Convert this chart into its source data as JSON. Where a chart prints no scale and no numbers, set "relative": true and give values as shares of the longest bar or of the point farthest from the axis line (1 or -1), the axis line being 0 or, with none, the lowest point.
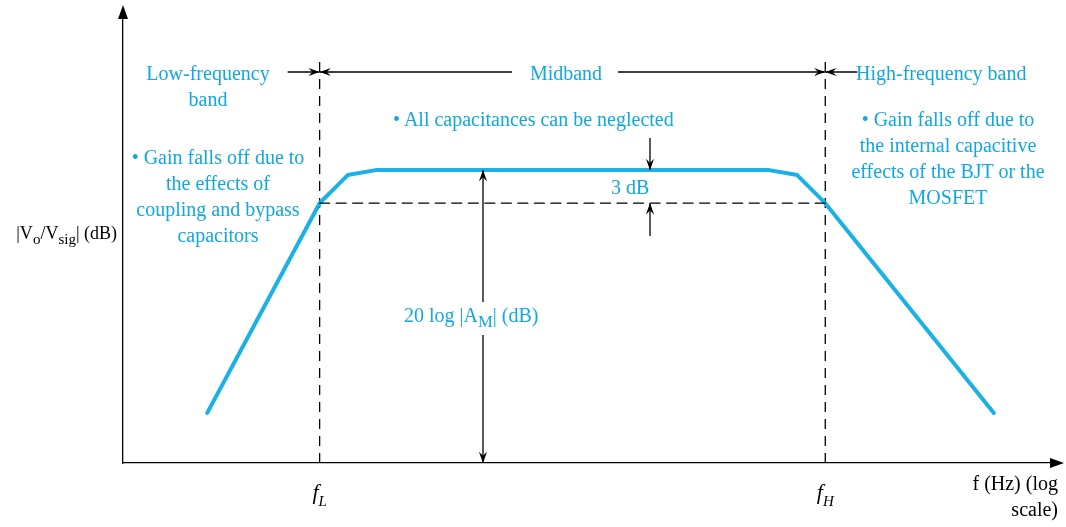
{
  "chart_data": {
    "type": "line",
    "relative": true,
    "xlabel": "f (Hz) (log scale)",
    "ylabel": "|V$_{o}$/V$_{sig}$| (dB)",
    "categories": [
      null,
      null,
      null,
      null,
      null,
      null,
      null,
      "f$_{L}$",
      null,
      null,
      null,
      null,
      null,
      null,
      null,
      null,
      null,
      null,
      null,
      null,
      null,
      null,
      null,
      null,
      null,
      "f$_{H}$",
      null,
      null,
      null,
      null,
      null,
      null,
      null,
      null
    ],
    "series": [
      {
        "color": "#1ab0e8",
        "values": [
          null,
          null,
          null,
          0.171,
          null,
          null,
          null,
          0.887,
          0.983,
          1,
          null,
          null,
          null,
          null,
          null,
          null,
          null,
          null,
          null,
          null,
          null,
          null,
          null,
          1,
          0.983,
          0.887,
          null,
          null,
          null,
          null,
          null,
          0.171,
          null,
          null
        ]
      },
      {
        "type": "line",
        "color": "#000000",
        "line_style": "dashed",
        "values": [
          null,
          null,
          null,
          null,
          null,
          null,
          null,
          0.887,
          null,
          null,
          null,
          null,
          null,
          null,
          null,
          null,
          null,
          null,
          null,
          null,
          null,
          null,
          null,
          null,
          null,
          0.887,
          null,
          null,
          null,
          null,
          null,
          null,
          null,
          null
        ]
      }
    ],
    "ref_lines": [
      {
        "axis": "x",
        "value": "f$_{L}$",
        "line_style": "dashed",
        "color": "#000000"
      },
      {
        "axis": "x",
        "value": "f$_{H}$",
        "line_style": "dashed",
        "color": "#000000"
      }
    ],
    "annotations": [
      "Low-frequency band",
      "Midband",
      "High-frequency band",
      "• All capacitances can be neglected",
      "• Gain falls off due to the effects of coupling and bypass capacitors",
      "• Gain falls off due to the internal capacitive effects of the BJT or the MOSFET",
      "3 dB",
      "20 log |A$_{M}$| (dB)"
    ],
    "grid": false,
    "legend": false,
    "marker": "none",
    "line_style": "solid"
  }
}
